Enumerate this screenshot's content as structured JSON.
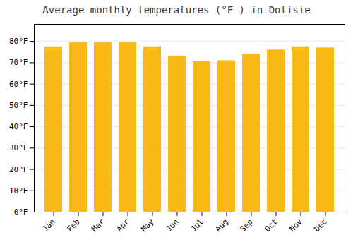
{
  "chart_data": {
    "type": "bar",
    "title": "Average monthly temperatures (°F ) in Dolisie",
    "categories": [
      "Jan",
      "Feb",
      "Mar",
      "Apr",
      "May",
      "Jun",
      "Jul",
      "Aug",
      "Sep",
      "Oct",
      "Nov",
      "Dec"
    ],
    "values": [
      77.5,
      79.5,
      79.5,
      79.5,
      77.5,
      73,
      70.5,
      71,
      74,
      76,
      77.5,
      77
    ],
    "color": "#FBB917",
    "ylim": [
      0,
      88
    ],
    "yticks": [
      {
        "value": 0,
        "label": "0°F"
      },
      {
        "value": 10,
        "label": "10°F"
      },
      {
        "value": 20,
        "label": "20°F"
      },
      {
        "value": 30,
        "label": "30°F"
      },
      {
        "value": 40,
        "label": "40°F"
      },
      {
        "value": 50,
        "label": "50°F"
      },
      {
        "value": 60,
        "label": "60°F"
      },
      {
        "value": 70,
        "label": "70°F"
      },
      {
        "value": 80,
        "label": "80°F"
      }
    ],
    "grid": true
  }
}
